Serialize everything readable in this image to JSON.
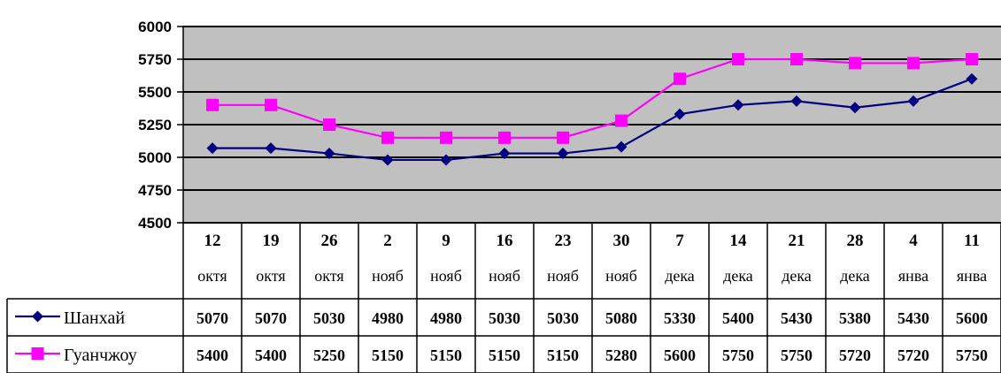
{
  "chart_data": {
    "type": "line",
    "title": "",
    "xlabel": "",
    "ylabel": "",
    "ylim": [
      4500,
      6000
    ],
    "yticks": [
      6000,
      5750,
      5500,
      5250,
      5000,
      4750,
      4500
    ],
    "grid": true,
    "plot_background": "#c0c0c0",
    "legend": "data-table",
    "categories": [
      {
        "day": "12",
        "month": "октя"
      },
      {
        "day": "19",
        "month": "октя"
      },
      {
        "day": "26",
        "month": "октя"
      },
      {
        "day": "2",
        "month": "нояб"
      },
      {
        "day": "9",
        "month": "нояб"
      },
      {
        "day": "16",
        "month": "нояб"
      },
      {
        "day": "23",
        "month": "нояб"
      },
      {
        "day": "30",
        "month": "нояб"
      },
      {
        "day": "7",
        "month": "дека"
      },
      {
        "day": "14",
        "month": "дека"
      },
      {
        "day": "21",
        "month": "дека"
      },
      {
        "day": "28",
        "month": "дека"
      },
      {
        "day": "4",
        "month": "янва"
      },
      {
        "day": "11",
        "month": "янва"
      }
    ],
    "series": [
      {
        "name": "Шанхай",
        "color": "#000080",
        "marker": "diamond",
        "values": [
          5070,
          5070,
          5030,
          4980,
          4980,
          5030,
          5030,
          5080,
          5330,
          5400,
          5430,
          5380,
          5430,
          5600
        ]
      },
      {
        "name": "Гуанчжоу",
        "color": "#ff00ff",
        "marker": "square",
        "values": [
          5400,
          5400,
          5250,
          5150,
          5150,
          5150,
          5150,
          5280,
          5600,
          5750,
          5750,
          5720,
          5720,
          5750
        ]
      }
    ]
  }
}
